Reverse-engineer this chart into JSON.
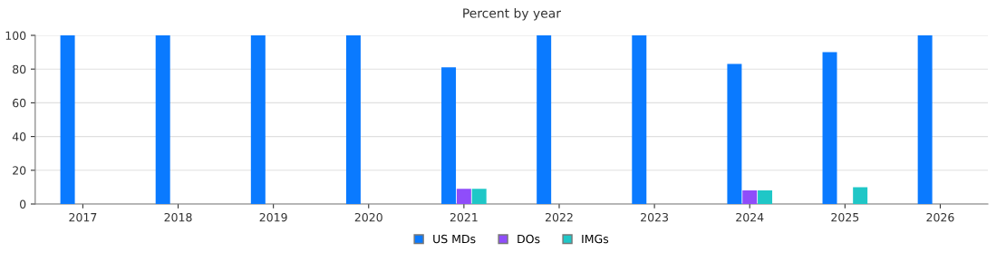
{
  "chart_data": {
    "type": "bar",
    "title": "Percent by year",
    "categories": [
      "2017",
      "2018",
      "2019",
      "2020",
      "2021",
      "2022",
      "2023",
      "2024",
      "2025",
      "2026"
    ],
    "series": [
      {
        "name": "US MDs",
        "color": "#0a7aff",
        "values": [
          100,
          100,
          100,
          100,
          81,
          100,
          100,
          83,
          90,
          100
        ]
      },
      {
        "name": "DOs",
        "color": "#8f4dfa",
        "values": [
          0,
          0,
          0,
          0,
          9,
          0,
          0,
          8,
          0,
          0
        ]
      },
      {
        "name": "IMGs",
        "color": "#1fc7c7",
        "values": [
          0,
          0,
          0,
          0,
          9,
          0,
          0,
          8,
          10,
          0
        ]
      }
    ],
    "ylim": [
      0,
      100
    ],
    "yticks": [
      0,
      20,
      40,
      60,
      80,
      100
    ],
    "grid": "y",
    "legend": "bottom"
  }
}
